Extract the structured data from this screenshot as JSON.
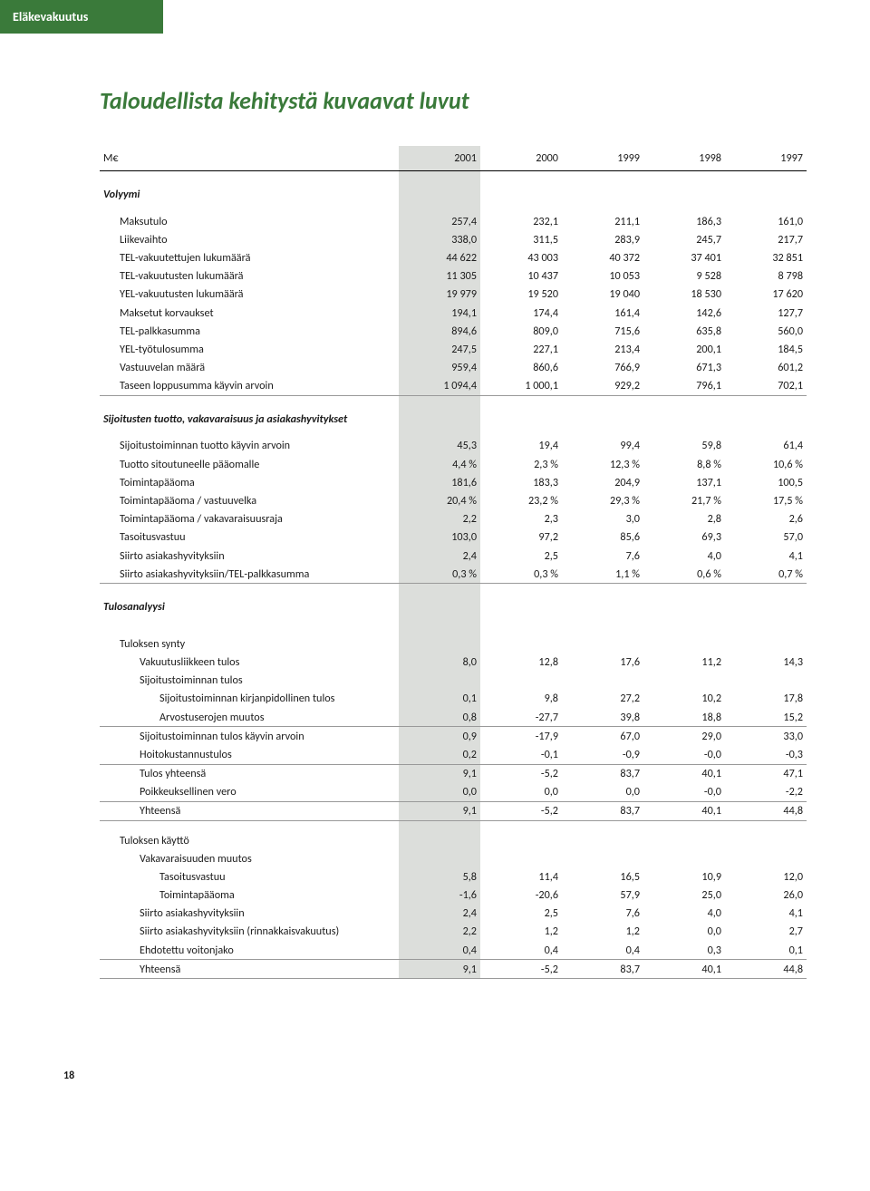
{
  "topbar": "Eläkevakuutus",
  "title": "Taloudellista kehitystä kuvaavat luvut",
  "currency": "M€",
  "years": [
    "2001",
    "2000",
    "1999",
    "1998",
    "1997"
  ],
  "sections": [
    {
      "heading": "Volyymi",
      "rows": [
        {
          "label": "Maksutulo",
          "indent": 1,
          "v": [
            "257,4",
            "232,1",
            "211,1",
            "186,3",
            "161,0"
          ]
        },
        {
          "label": "Liikevaihto",
          "indent": 1,
          "v": [
            "338,0",
            "311,5",
            "283,9",
            "245,7",
            "217,7"
          ]
        },
        {
          "label": "TEL-vakuutettujen lukumäärä",
          "indent": 1,
          "v": [
            "44 622",
            "43 003",
            "40 372",
            "37 401",
            "32 851"
          ]
        },
        {
          "label": "TEL-vakuutusten lukumäärä",
          "indent": 1,
          "v": [
            "11 305",
            "10 437",
            "10 053",
            "9 528",
            "8 798"
          ]
        },
        {
          "label": "YEL-vakuutusten lukumäärä",
          "indent": 1,
          "v": [
            "19 979",
            "19 520",
            "19 040",
            "18 530",
            "17 620"
          ]
        },
        {
          "label": "Maksetut korvaukset",
          "indent": 1,
          "v": [
            "194,1",
            "174,4",
            "161,4",
            "142,6",
            "127,7"
          ]
        },
        {
          "label": "TEL-palkkasumma",
          "indent": 1,
          "v": [
            "894,6",
            "809,0",
            "715,6",
            "635,8",
            "560,0"
          ]
        },
        {
          "label": "YEL-työtulosumma",
          "indent": 1,
          "v": [
            "247,5",
            "227,1",
            "213,4",
            "200,1",
            "184,5"
          ]
        },
        {
          "label": "Vastuuvelan määrä",
          "indent": 1,
          "v": [
            "959,4",
            "860,6",
            "766,9",
            "671,3",
            "601,2"
          ]
        },
        {
          "label": "Taseen loppusumma käyvin arvoin",
          "indent": 1,
          "v": [
            "1 094,4",
            "1 000,1",
            "929,2",
            "796,1",
            "702,1"
          ]
        }
      ]
    },
    {
      "heading": "Sijoitusten tuotto, vakavaraisuus ja asiakashyvitykset",
      "rows": [
        {
          "label": "Sijoitustoiminnan tuotto käyvin arvoin",
          "indent": 1,
          "v": [
            "45,3",
            "19,4",
            "99,4",
            "59,8",
            "61,4"
          ]
        },
        {
          "label": "Tuotto sitoutuneelle pääomalle",
          "indent": 1,
          "v": [
            "4,4 %",
            "2,3 %",
            "12,3 %",
            "8,8 %",
            "10,6 %"
          ]
        },
        {
          "label": "Toimintapääoma",
          "indent": 1,
          "v": [
            "181,6",
            "183,3",
            "204,9",
            "137,1",
            "100,5"
          ]
        },
        {
          "label": "Toimintapääoma / vastuuvelka",
          "indent": 1,
          "v": [
            "20,4 %",
            "23,2 %",
            "29,3 %",
            "21,7 %",
            "17,5 %"
          ]
        },
        {
          "label": "Toimintapääoma / vakavaraisuusraja",
          "indent": 1,
          "v": [
            "2,2",
            "2,3",
            "3,0",
            "2,8",
            "2,6"
          ]
        },
        {
          "label": "Tasoitusvastuu",
          "indent": 1,
          "v": [
            "103,0",
            "97,2",
            "85,6",
            "69,3",
            "57,0"
          ]
        },
        {
          "label": "Siirto asiakashyvityksiin",
          "indent": 1,
          "v": [
            "2,4",
            "2,5",
            "7,6",
            "4,0",
            "4,1"
          ]
        },
        {
          "label": "Siirto asiakashyvityksiin/TEL-palkkasumma",
          "indent": 1,
          "v": [
            "0,3 %",
            "0,3 %",
            "1,1 %",
            "0,6 %",
            "0,7 %"
          ]
        }
      ]
    },
    {
      "heading": "Tulosanalyysi",
      "groups": [
        {
          "sub": "Tuloksen synty",
          "rows": [
            {
              "label": "Vakuutusliikkeen tulos",
              "indent": 2,
              "v": [
                "8,0",
                "12,8",
                "17,6",
                "11,2",
                "14,3"
              ]
            },
            {
              "label": "Sijoitustoiminnan tulos",
              "indent": 2,
              "v": [
                "",
                "",
                "",
                "",
                ""
              ]
            },
            {
              "label": "Sijoitustoiminnan kirjanpidollinen tulos",
              "indent": 3,
              "v": [
                "0,1",
                "9,8",
                "27,2",
                "10,2",
                "17,8"
              ]
            },
            {
              "label": "Arvostuserojen muutos",
              "indent": 3,
              "v": [
                "0,8",
                "-27,7",
                "39,8",
                "18,8",
                "15,2"
              ],
              "rule": "bottom"
            },
            {
              "label": "Sijoitustoiminnan tulos käyvin arvoin",
              "indent": 2,
              "v": [
                "0,9",
                "-17,9",
                "67,0",
                "29,0",
                "33,0"
              ]
            },
            {
              "label": "Hoitokustannustulos",
              "indent": 2,
              "v": [
                "0,2",
                "-0,1",
                "-0,9",
                "-0,0",
                "-0,3"
              ],
              "rule": "bottom"
            },
            {
              "label": "Tulos yhteensä",
              "indent": 2,
              "v": [
                "9,1",
                "-5,2",
                "83,7",
                "40,1",
                "47,1"
              ]
            },
            {
              "label": "Poikkeuksellinen vero",
              "indent": 2,
              "v": [
                "0,0",
                "0,0",
                "0,0",
                "-0,0",
                "-2,2"
              ],
              "rule": "bottom"
            },
            {
              "label": "Yhteensä",
              "indent": 2,
              "v": [
                "9,1",
                "-5,2",
                "83,7",
                "40,1",
                "44,8"
              ],
              "rule": "bottom"
            }
          ]
        },
        {
          "sub": "Tuloksen käyttö",
          "rows": [
            {
              "label": "Vakavaraisuuden muutos",
              "indent": 2,
              "v": [
                "",
                "",
                "",
                "",
                ""
              ]
            },
            {
              "label": "Tasoitusvastuu",
              "indent": 3,
              "v": [
                "5,8",
                "11,4",
                "16,5",
                "10,9",
                "12,0"
              ]
            },
            {
              "label": "Toimintapääoma",
              "indent": 3,
              "v": [
                "-1,6",
                "-20,6",
                "57,9",
                "25,0",
                "26,0"
              ]
            },
            {
              "label": "Siirto asiakashyvityksiin",
              "indent": 2,
              "v": [
                "2,4",
                "2,5",
                "7,6",
                "4,0",
                "4,1"
              ]
            },
            {
              "label": "Siirto asiakashyvityksiin (rinnakkaisvakuutus)",
              "indent": 2,
              "v": [
                "2,2",
                "1,2",
                "1,2",
                "0,0",
                "2,7"
              ]
            },
            {
              "label": "Ehdotettu voitonjako",
              "indent": 2,
              "v": [
                "0,4",
                "0,4",
                "0,4",
                "0,3",
                "0,1"
              ],
              "rule": "bottom"
            },
            {
              "label": "Yhteensä",
              "indent": 2,
              "v": [
                "9,1",
                "-5,2",
                "83,7",
                "40,1",
                "44,8"
              ],
              "rule": "bottom"
            }
          ]
        }
      ]
    }
  ],
  "pageNumber": "18",
  "colors": {
    "green": "#3a7a3a",
    "shade": "#dcdedb"
  }
}
